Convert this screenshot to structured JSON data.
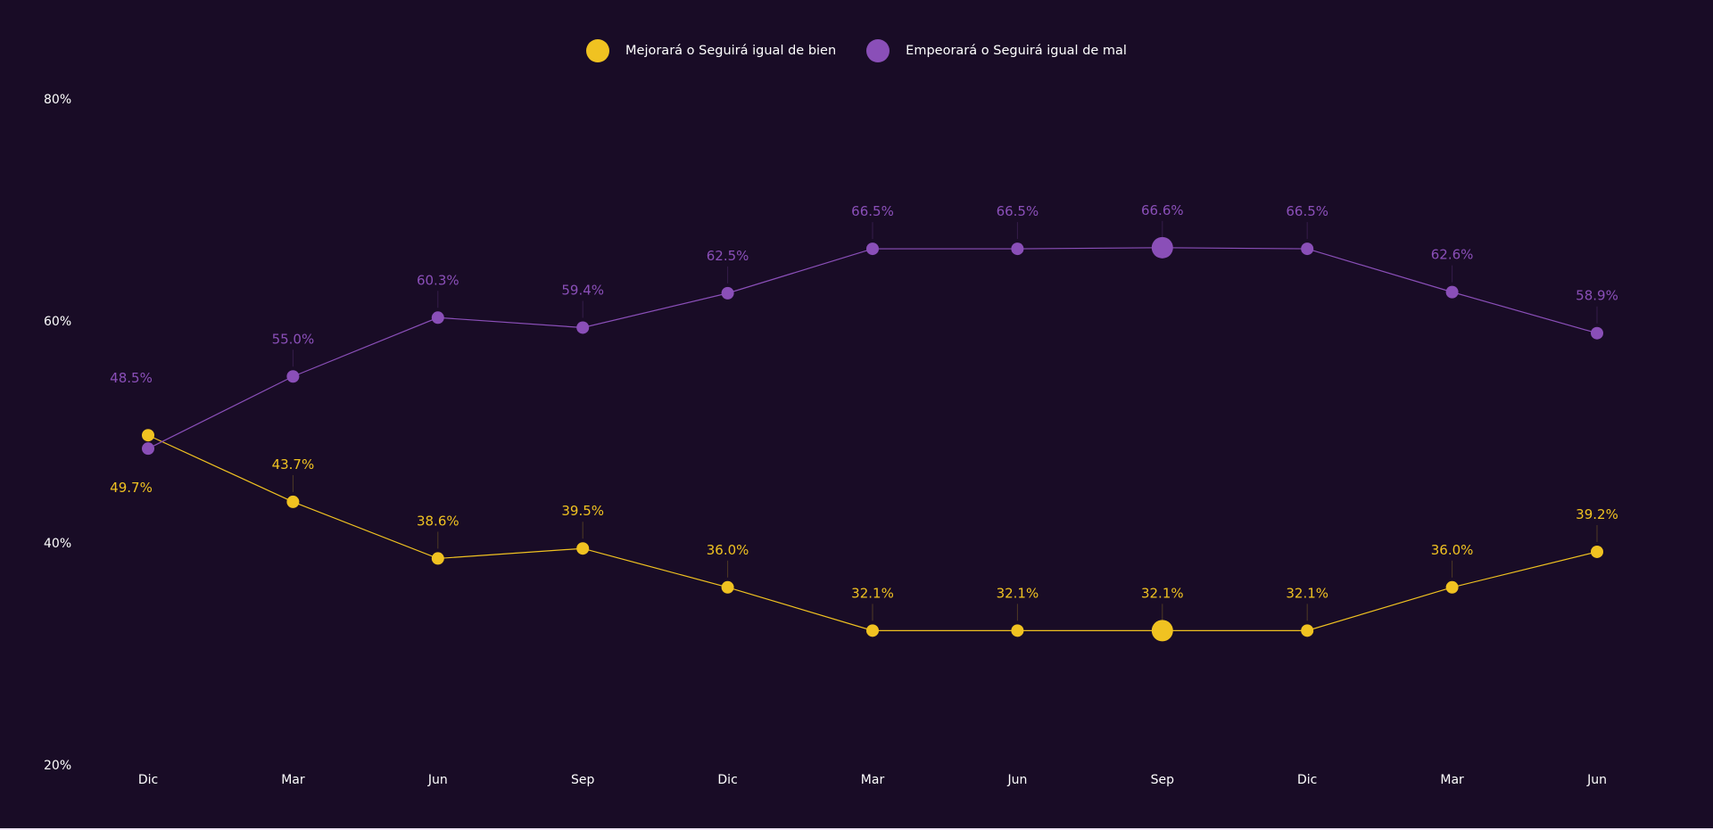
{
  "chart_data": {
    "type": "line",
    "title": "",
    "xlabel": "",
    "ylabel": "",
    "ylim": [
      20,
      80
    ],
    "y_ticks": [
      "20%",
      "40%",
      "60%",
      "80%"
    ],
    "y_tick_values": [
      20,
      40,
      60,
      80
    ],
    "categories": [
      "Dic",
      "Mar",
      "Jun",
      "Sep",
      "Dic",
      "Mar",
      "Jun",
      "Sep",
      "Dic",
      "Mar",
      "Jun"
    ],
    "highlight_index": 7,
    "series": [
      {
        "name": "Mejorará o Seguirá igual de bien",
        "color": "#f0c221",
        "values": [
          49.7,
          43.7,
          38.6,
          39.5,
          36.0,
          32.1,
          32.1,
          32.1,
          32.1,
          36.0,
          39.2
        ],
        "labels": [
          "49.7%",
          "43.7%",
          "38.6%",
          "39.5%",
          "36.0%",
          "32.1%",
          "32.1%",
          "32.1%",
          "32.1%",
          "36.0%",
          "39.2%"
        ]
      },
      {
        "name": "Empeorará o Seguirá igual de mal",
        "color": "#8a4fb8",
        "values": [
          48.5,
          55.0,
          60.3,
          59.4,
          62.5,
          66.5,
          66.5,
          66.6,
          66.5,
          62.6,
          58.9
        ],
        "labels": [
          "48.5%",
          "55.0%",
          "60.3%",
          "59.4%",
          "62.5%",
          "66.5%",
          "66.5%",
          "66.6%",
          "66.5%",
          "62.6%",
          "58.9%"
        ]
      }
    ],
    "legend_position": "top-center",
    "grid": false
  }
}
